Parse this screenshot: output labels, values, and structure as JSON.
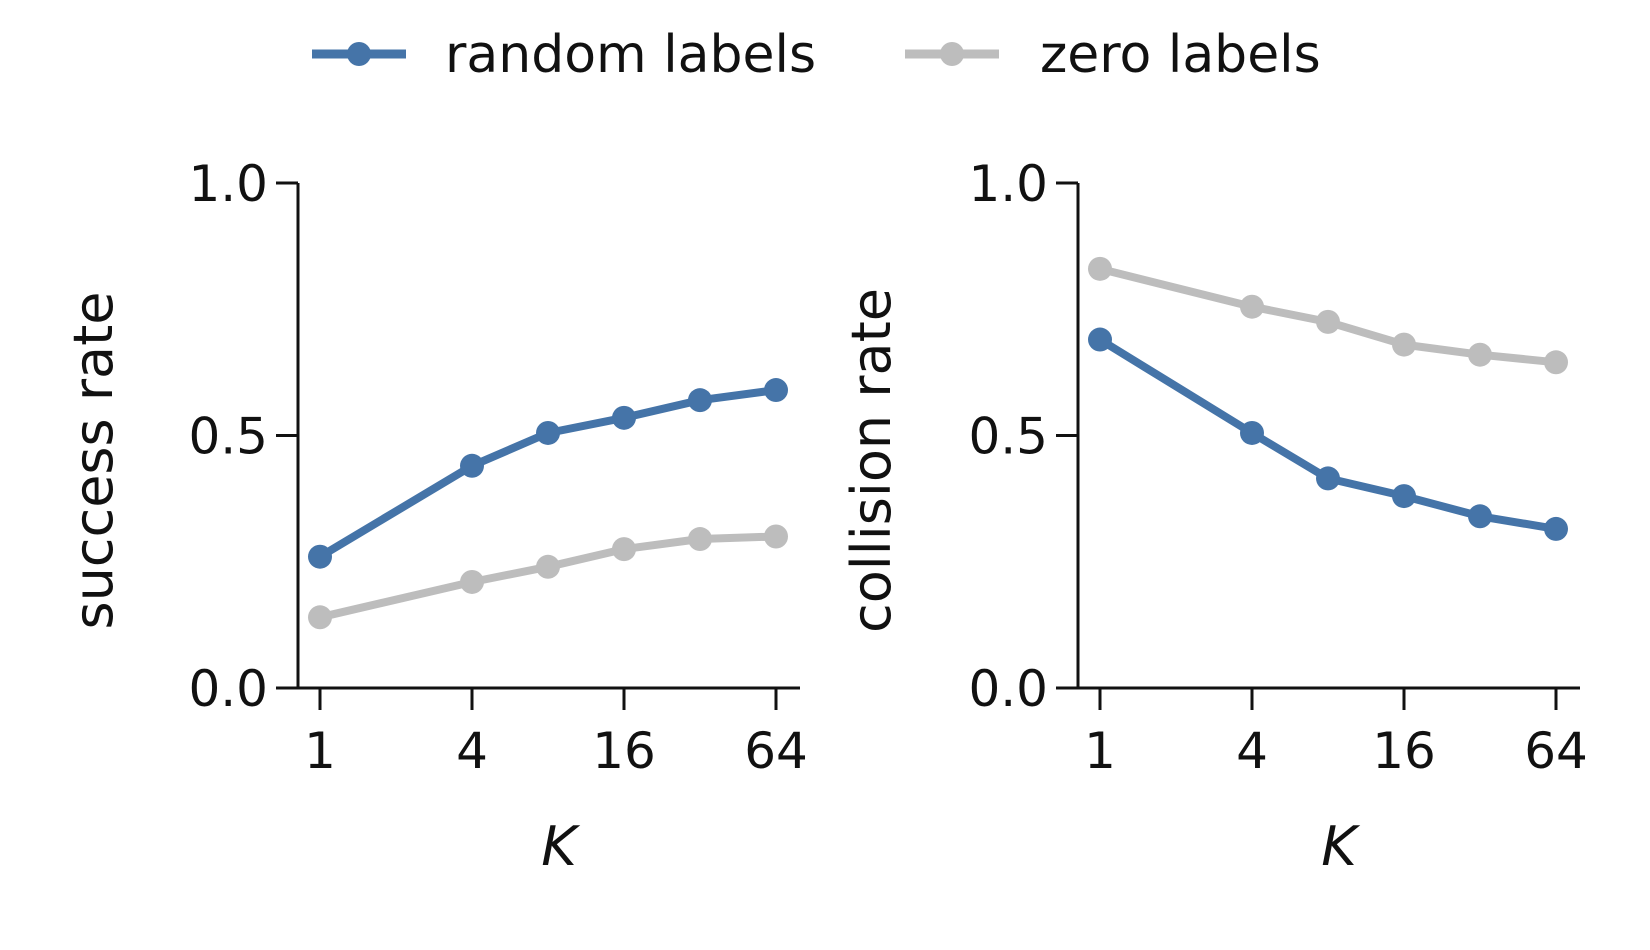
{
  "legend": {
    "entries": [
      {
        "label": "random labels",
        "color": "#4574a8"
      },
      {
        "label": "zero labels",
        "color": "#bdbdbd"
      }
    ]
  },
  "chart_data": [
    {
      "type": "line",
      "xlabel": "K",
      "ylabel": "success rate",
      "x": [
        1,
        4,
        8,
        16,
        32,
        64
      ],
      "x_scale": "log2",
      "xticks": [
        1,
        4,
        16,
        64
      ],
      "xtick_labels": [
        "1",
        "4",
        "16",
        "64"
      ],
      "ylim": [
        0,
        1
      ],
      "yticks": [
        0.0,
        0.5,
        1.0
      ],
      "ytick_labels": [
        "0.0",
        "0.5",
        "1.0"
      ],
      "series": [
        {
          "name": "random labels",
          "color": "#4574a8",
          "values": [
            0.26,
            0.44,
            0.505,
            0.535,
            0.57,
            0.59
          ]
        },
        {
          "name": "zero labels",
          "color": "#bdbdbd",
          "values": [
            0.14,
            0.21,
            0.24,
            0.275,
            0.295,
            0.3
          ]
        }
      ]
    },
    {
      "type": "line",
      "xlabel": "K",
      "ylabel": "collision rate",
      "x": [
        1,
        4,
        8,
        16,
        32,
        64
      ],
      "x_scale": "log2",
      "xticks": [
        1,
        4,
        16,
        64
      ],
      "xtick_labels": [
        "1",
        "4",
        "16",
        "64"
      ],
      "ylim": [
        0,
        1
      ],
      "yticks": [
        0.0,
        0.5,
        1.0
      ],
      "ytick_labels": [
        "0.0",
        "0.5",
        "1.0"
      ],
      "series": [
        {
          "name": "random labels",
          "color": "#4574a8",
          "values": [
            0.69,
            0.505,
            0.415,
            0.38,
            0.34,
            0.315
          ]
        },
        {
          "name": "zero labels",
          "color": "#bdbdbd",
          "values": [
            0.83,
            0.755,
            0.725,
            0.68,
            0.66,
            0.645
          ]
        }
      ]
    }
  ]
}
